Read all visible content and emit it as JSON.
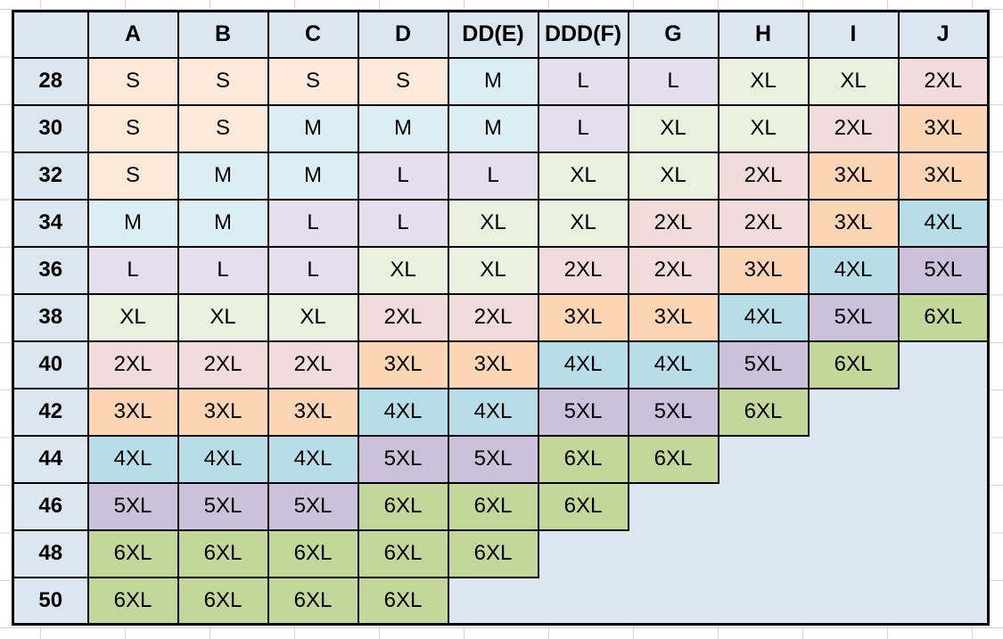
{
  "table": {
    "corner_label": "",
    "column_headers": [
      "A",
      "B",
      "C",
      "D",
      "DD(E)",
      "DDD(F)",
      "G",
      "H",
      "I",
      "J"
    ],
    "rows": [
      {
        "label": "28",
        "cells": [
          "S",
          "S",
          "S",
          "S",
          "M",
          "L",
          "L",
          "XL",
          "XL",
          "2XL"
        ]
      },
      {
        "label": "30",
        "cells": [
          "S",
          "S",
          "M",
          "M",
          "M",
          "L",
          "XL",
          "XL",
          "2XL",
          "3XL"
        ]
      },
      {
        "label": "32",
        "cells": [
          "S",
          "M",
          "M",
          "L",
          "L",
          "XL",
          "XL",
          "2XL",
          "3XL",
          "3XL"
        ]
      },
      {
        "label": "34",
        "cells": [
          "M",
          "M",
          "L",
          "L",
          "XL",
          "XL",
          "2XL",
          "2XL",
          "3XL",
          "4XL"
        ]
      },
      {
        "label": "36",
        "cells": [
          "L",
          "L",
          "L",
          "XL",
          "XL",
          "2XL",
          "2XL",
          "3XL",
          "4XL",
          "5XL"
        ]
      },
      {
        "label": "38",
        "cells": [
          "XL",
          "XL",
          "XL",
          "2XL",
          "2XL",
          "3XL",
          "3XL",
          "4XL",
          "5XL",
          "6XL"
        ]
      },
      {
        "label": "40",
        "cells": [
          "2XL",
          "2XL",
          "2XL",
          "3XL",
          "3XL",
          "4XL",
          "4XL",
          "5XL",
          "6XL",
          ""
        ]
      },
      {
        "label": "42",
        "cells": [
          "3XL",
          "3XL",
          "3XL",
          "4XL",
          "4XL",
          "5XL",
          "5XL",
          "6XL",
          "",
          ""
        ]
      },
      {
        "label": "44",
        "cells": [
          "4XL",
          "4XL",
          "4XL",
          "5XL",
          "5XL",
          "6XL",
          "6XL",
          "",
          "",
          ""
        ]
      },
      {
        "label": "46",
        "cells": [
          "5XL",
          "5XL",
          "5XL",
          "6XL",
          "6XL",
          "6XL",
          "",
          "",
          "",
          ""
        ]
      },
      {
        "label": "48",
        "cells": [
          "6XL",
          "6XL",
          "6XL",
          "6XL",
          "6XL",
          "",
          "",
          "",
          "",
          ""
        ]
      },
      {
        "label": "50",
        "cells": [
          "6XL",
          "6XL",
          "6XL",
          "6XL",
          "",
          "",
          "",
          "",
          "",
          ""
        ]
      }
    ],
    "size_colors": {
      "S": "#FDE9D9",
      "M": "#DAEEF3",
      "L": "#E4DFEC",
      "XL": "#EBF1DE",
      "2XL": "#F2DCDB",
      "3XL": "#FCD5B4",
      "4XL": "#B7DEE8",
      "5XL": "#CCC0DA",
      "6XL": "#C4D79B"
    },
    "header_bg": "#DCE6F1",
    "empty_bg": "#DCE6F1",
    "border_color": "#000000",
    "grid_line_color": "#CID_PLACEHOLDER"
  }
}
